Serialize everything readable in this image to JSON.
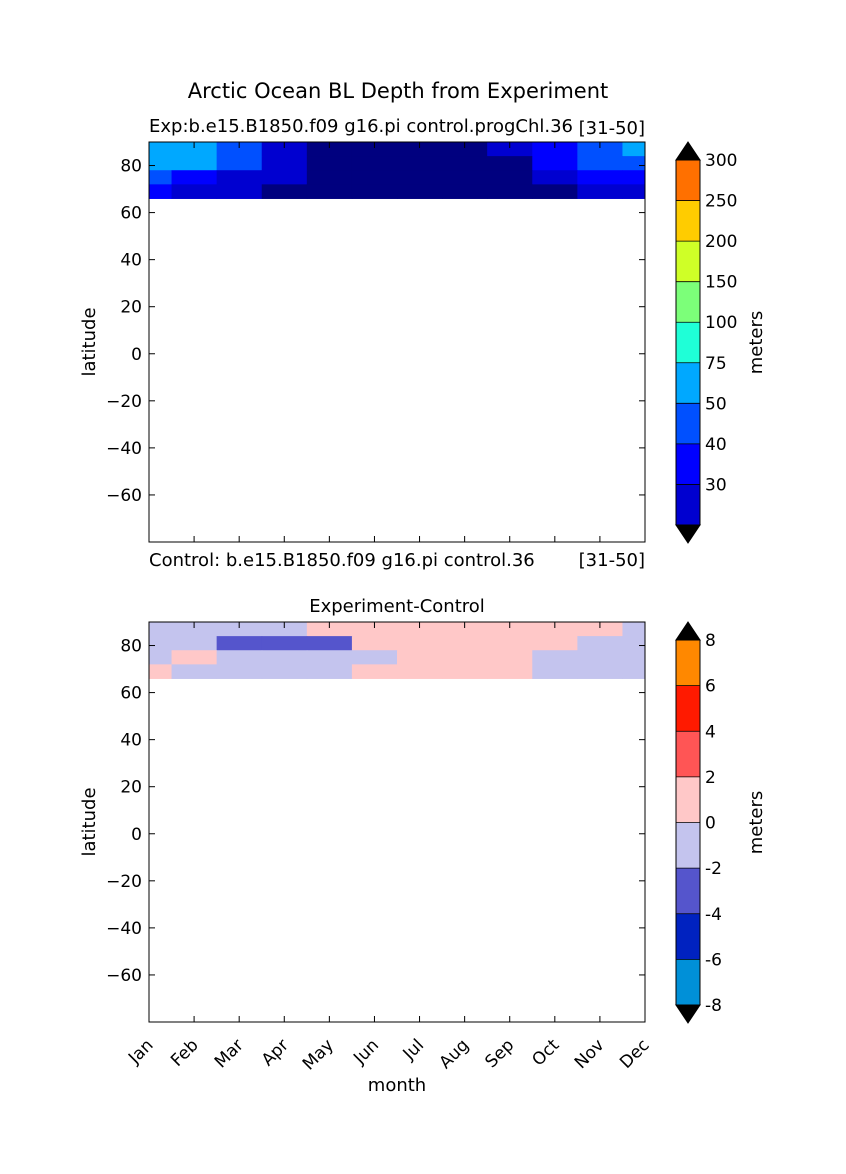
{
  "figure": {
    "suptitle": "Arctic Ocean BL Depth from Experiment"
  },
  "chart_data": [
    {
      "type": "heatmap",
      "title_left": "Exp:b.e15.B1850.f09 g16.pi control.progChl.36",
      "title_right": "[31-50]",
      "ylabel": "latitude",
      "xlabel": "",
      "xlim": [
        0,
        11
      ],
      "ylim": [
        -80,
        90
      ],
      "yticks": [
        80,
        60,
        40,
        20,
        0,
        -20,
        -40,
        -60
      ],
      "months": [
        "Jan",
        "Feb",
        "Mar",
        "Apr",
        "May",
        "Jun",
        "Jul",
        "Aug",
        "Sep",
        "Oct",
        "Nov",
        "Dec"
      ],
      "data_lat_range": [
        66,
        90
      ],
      "colorbar": {
        "label": "meters",
        "levels": [
          20,
          30,
          40,
          50,
          75,
          100,
          150,
          200,
          250,
          300
        ],
        "colors": [
          "#00007f",
          "#0000d0",
          "#0000ff",
          "#0050ff",
          "#00a8ff",
          "#1fffd7",
          "#7cff79",
          "#cfff27",
          "#ffcc00",
          "#ff7000",
          "#ff1800",
          "#7f0000"
        ],
        "extend": "both"
      },
      "bands": [
        {
          "lat_top": 90,
          "lat_bot": 84,
          "values": [
            70,
            60,
            45,
            20,
            10,
            8,
            8,
            10,
            20,
            35,
            45,
            60
          ]
        },
        {
          "lat_top": 84,
          "lat_bot": 78,
          "values": [
            60,
            60,
            40,
            20,
            12,
            8,
            8,
            10,
            15,
            30,
            40,
            45
          ]
        },
        {
          "lat_top": 78,
          "lat_bot": 72,
          "values": [
            40,
            32,
            28,
            22,
            15,
            8,
            8,
            8,
            10,
            25,
            30,
            35
          ]
        },
        {
          "lat_top": 72,
          "lat_bot": 66,
          "values": [
            30,
            28,
            25,
            18,
            12,
            8,
            8,
            8,
            10,
            18,
            25,
            28
          ]
        }
      ]
    },
    {
      "type": "heatmap",
      "title": "Experiment-Control",
      "title_left": "Control: b.e15.B1850.f09 g16.pi control.36",
      "title_right": "[31-50]",
      "ylabel": "latitude",
      "xlabel": "month",
      "xlim": [
        0,
        11
      ],
      "ylim": [
        -80,
        90
      ],
      "yticks": [
        80,
        60,
        40,
        20,
        0,
        -20,
        -40,
        -60
      ],
      "months": [
        "Jan",
        "Feb",
        "Mar",
        "Apr",
        "May",
        "Jun",
        "Jul",
        "Aug",
        "Sep",
        "Oct",
        "Nov",
        "Dec"
      ],
      "data_lat_range": [
        66,
        90
      ],
      "colorbar": {
        "label": "meters",
        "levels": [
          -8,
          -6,
          -4,
          -2,
          0,
          2,
          4,
          6,
          8
        ],
        "colors": [
          "#00ffff",
          "#0090d8",
          "#0022c0",
          "#5555cc",
          "#c4c4ee",
          "#ffc8c8",
          "#ff5555",
          "#ff1a00",
          "#ff8800",
          "#ffff22"
        ],
        "extend": "both"
      },
      "bands": [
        {
          "lat_top": 90,
          "lat_bot": 84,
          "values": [
            -1,
            -1,
            -1,
            -1,
            1,
            1,
            1,
            1,
            1,
            1,
            1,
            -1
          ]
        },
        {
          "lat_top": 84,
          "lat_bot": 78,
          "values": [
            -1,
            -1,
            -3,
            -3,
            -3,
            1,
            1,
            1,
            1,
            1,
            -1,
            -1
          ]
        },
        {
          "lat_top": 78,
          "lat_bot": 72,
          "values": [
            -1,
            1,
            -1,
            -1,
            -1,
            -1,
            1,
            1,
            1,
            -1,
            -1,
            -1
          ]
        },
        {
          "lat_top": 72,
          "lat_bot": 66,
          "values": [
            1,
            -1,
            -1,
            -1,
            -1,
            1,
            1,
            1,
            1,
            -1,
            -1,
            -1
          ]
        }
      ]
    }
  ]
}
